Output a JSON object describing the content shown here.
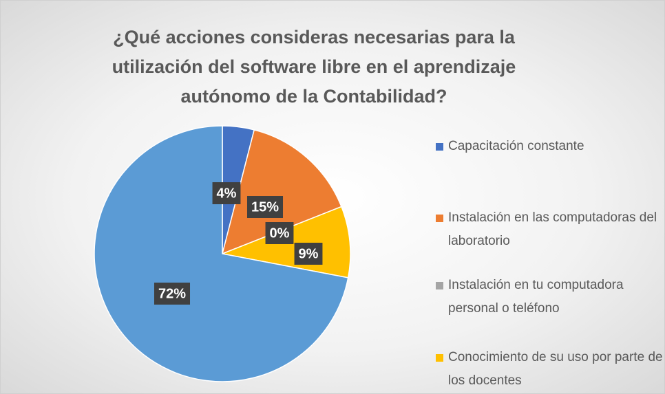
{
  "chart_data": {
    "type": "pie",
    "title": "¿Qué acciones consideras necesarias para la utilización del software libre en el aprendizaje autónomo de la Contabilidad?",
    "categories": [
      "Capacitación constante",
      "Instalación en las computadoras del laboratorio",
      "Instalación en tu computadora personal o teléfono",
      "Conocimiento de su uso por parte de los docentes",
      null
    ],
    "values": [
      4,
      15,
      0,
      9,
      72
    ],
    "value_labels": [
      "4%",
      "15%",
      "0%",
      "9%",
      "72%"
    ],
    "colors": [
      "#4472c4",
      "#ed7d31",
      "#a5a5a5",
      "#ffc000",
      "#5b9bd5"
    ],
    "legend": "right"
  }
}
